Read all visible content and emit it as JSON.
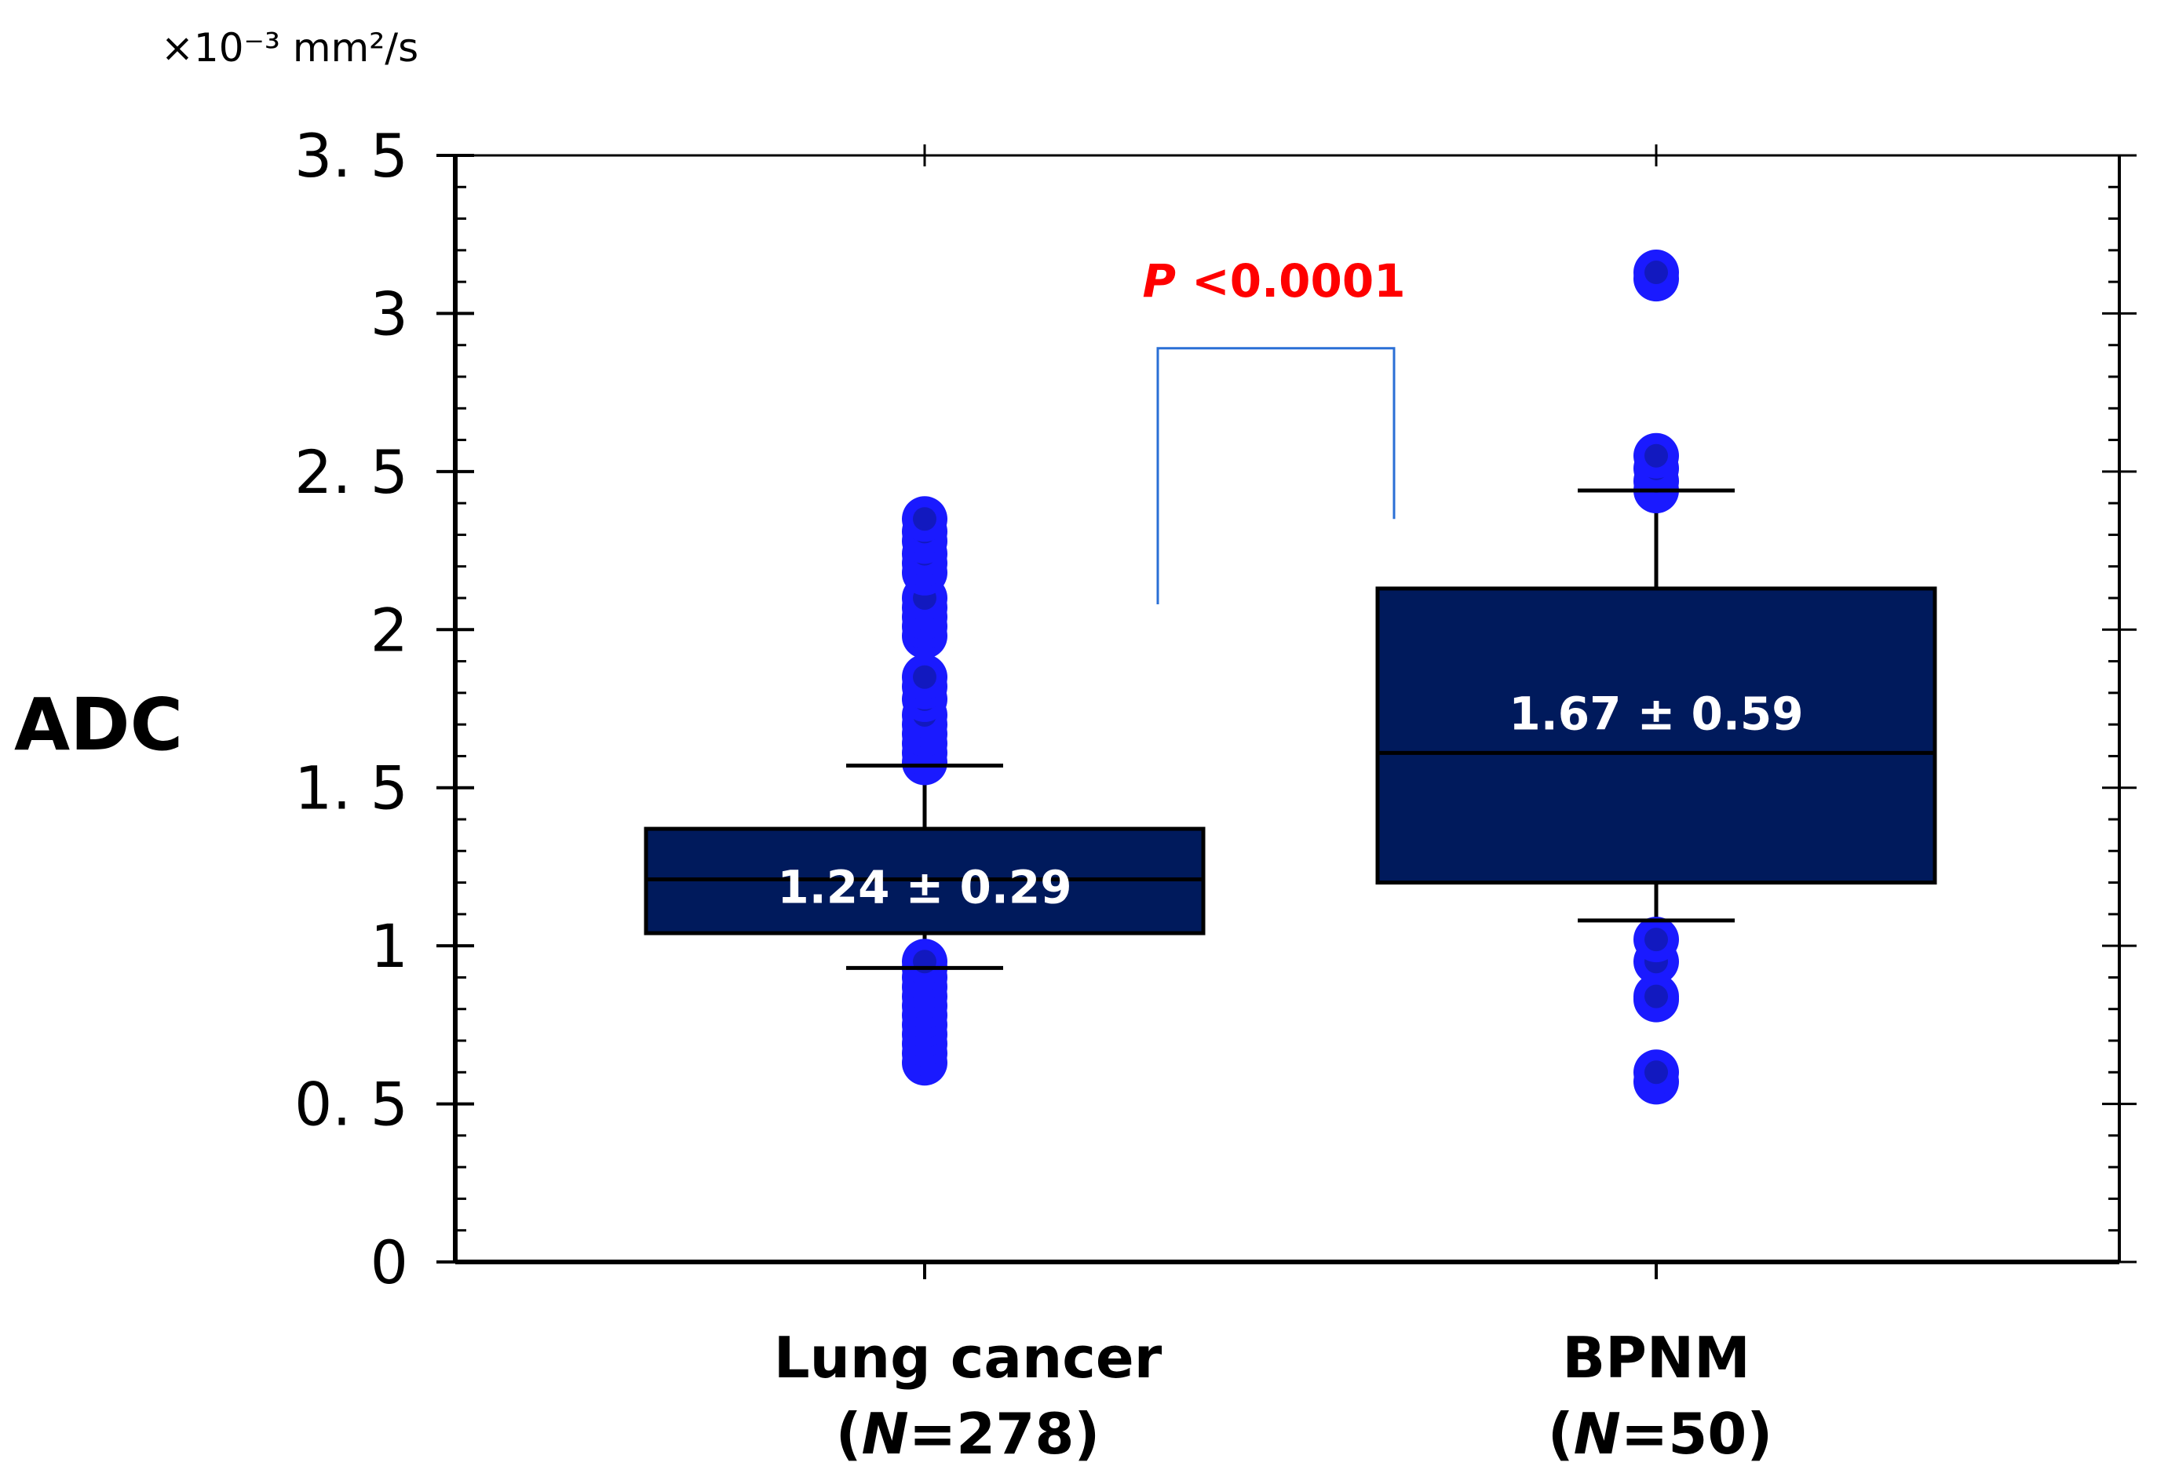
{
  "chart_data": {
    "type": "box",
    "title": "",
    "ylabel": "ADC",
    "y_unit": "×10⁻³ mm²/s",
    "ylim": [
      0,
      3.5
    ],
    "yticks": [
      0,
      0.5,
      1,
      1.5,
      2,
      2.5,
      3,
      3.5
    ],
    "ytick_labels": [
      "0",
      "0. 5",
      "1",
      "1. 5",
      "2",
      "2. 5",
      "3",
      "3. 5"
    ],
    "groups": [
      {
        "name": "Lung cancer",
        "n_label": "(N=278)",
        "n_prefix": "(",
        "n_italic": "N",
        "n_suffix": "=278)",
        "whisker_low": 0.93,
        "q1": 1.04,
        "median": 1.21,
        "q3": 1.37,
        "whisker_high": 1.57,
        "box_label": "1.24 ± 0.29",
        "outliers": [
          0.63,
          0.66,
          0.69,
          0.72,
          0.75,
          0.78,
          0.81,
          0.84,
          0.87,
          0.9,
          0.93,
          0.95,
          1.58,
          1.61,
          1.64,
          1.67,
          1.7,
          1.73,
          1.78,
          1.82,
          1.85,
          1.98,
          2.01,
          2.04,
          2.07,
          2.1,
          2.18,
          2.21,
          2.24,
          2.28,
          2.31,
          2.35
        ]
      },
      {
        "name": "BPNM",
        "n_label": "(N=50)",
        "n_prefix": "(",
        "n_italic": "N",
        "n_suffix": "=50)",
        "whisker_low": 1.08,
        "q1": 1.2,
        "median": 1.61,
        "q3": 2.13,
        "whisker_high": 2.44,
        "box_label": "1.67 ± 0.59",
        "outliers": [
          0.57,
          0.6,
          0.83,
          0.84,
          0.95,
          1.02,
          2.44,
          2.47,
          2.51,
          2.55,
          3.11,
          3.13
        ]
      }
    ],
    "significance": {
      "label": "P <0.0001",
      "italic_part": "P",
      "rest": " <0.0001",
      "left_y": 2.08,
      "right_y": 2.35,
      "top_y": 2.89
    },
    "colors": {
      "box": "#001a5c",
      "outlier": "#1a1aff",
      "outlier_core": "#0d1a8a",
      "bracket": "#2a6fd6",
      "pvalue": "#ff0000"
    }
  }
}
